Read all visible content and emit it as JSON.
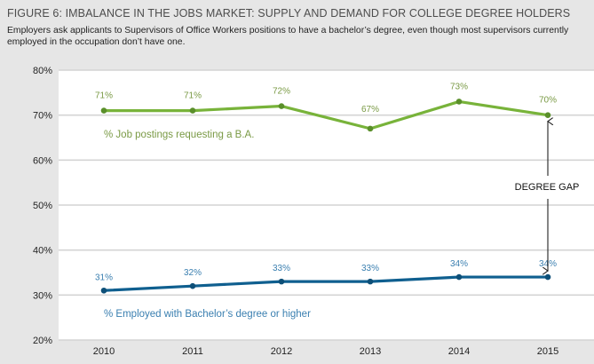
{
  "chart_data": {
    "type": "line",
    "title": "FIGURE 6: IMBALANCE IN THE JOBS MARKET: SUPPLY AND DEMAND FOR COLLEGE DEGREE HOLDERS",
    "subtitle": "Employers ask applicants to Supervisors of Office Workers positions to have a bachelor’s degree, even though most supervisors currently employed in the occupation don’t have one.",
    "xlabel": "",
    "ylabel": "",
    "categories": [
      "2010",
      "2011",
      "2012",
      "2013",
      "2014",
      "2015"
    ],
    "ylim": [
      20,
      80
    ],
    "yticks": [
      20,
      30,
      40,
      50,
      60,
      70,
      80
    ],
    "ytick_labels": [
      "20%",
      "30%",
      "40%",
      "50%",
      "60%",
      "70%",
      "80%"
    ],
    "grid": true,
    "series": [
      {
        "name": "% Job postings requesting a B.A.",
        "color": "#78b33a",
        "marker_color": "#5a8f2a",
        "label_color": "#7a9a45",
        "values": [
          71,
          71,
          72,
          67,
          73,
          70
        ],
        "labels": [
          "71%",
          "71%",
          "72%",
          "67%",
          "73%",
          "70%"
        ]
      },
      {
        "name": "% Employed with Bachelor’s degree or higher",
        "color": "#0f5f8f",
        "marker_color": "#0d4f78",
        "label_color": "#3a7fb0",
        "values": [
          31,
          32,
          33,
          33,
          34,
          34
        ],
        "labels": [
          "31%",
          "32%",
          "33%",
          "33%",
          "34%",
          "34%"
        ]
      }
    ],
    "annotations": [
      {
        "text": "DEGREE GAP",
        "type": "double-arrow",
        "x": "2015",
        "from": 34,
        "to": 70
      }
    ]
  }
}
